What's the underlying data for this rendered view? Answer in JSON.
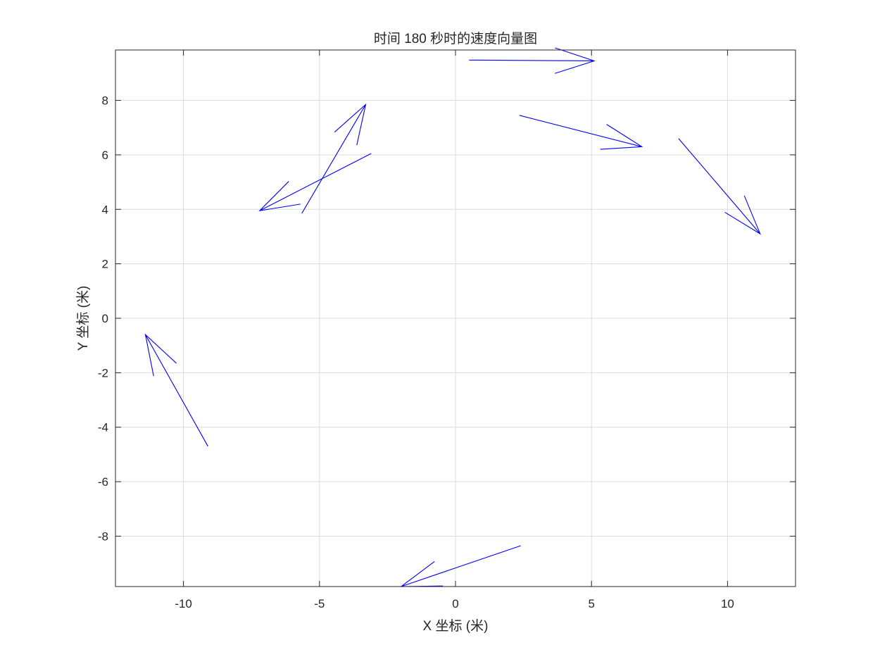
{
  "chart_data": {
    "type": "quiver",
    "title": "时间 180 秒时的速度向量图",
    "xlabel": "X 坐标 (米)",
    "ylabel": "Y 坐标 (米)",
    "xlim": [
      -12.5,
      12.5
    ],
    "ylim": [
      -9.85,
      9.85
    ],
    "x_ticks": [
      -10,
      -5,
      0,
      5,
      10
    ],
    "y_ticks": [
      -8,
      -6,
      -4,
      -2,
      0,
      2,
      4,
      6,
      8
    ],
    "x_tick_labels": [
      "-10",
      "-5",
      "0",
      "5",
      "10"
    ],
    "y_tick_labels": [
      "-8",
      "-6",
      "-4",
      "-2",
      "0",
      "2",
      "4",
      "6",
      "8"
    ],
    "grid": true,
    "color": "#0000ff",
    "vectors": [
      {
        "x": -9.1,
        "y": -4.7,
        "u": -2.3,
        "v": 4.1
      },
      {
        "x": 2.4,
        "y": -8.35,
        "u": -4.4,
        "v": -1.5
      },
      {
        "x": 0.5,
        "y": 9.48,
        "u": 4.6,
        "v": -0.03
      },
      {
        "x": 2.35,
        "y": 7.45,
        "u": 4.5,
        "v": -1.15
      },
      {
        "x": 8.2,
        "y": 6.6,
        "u": 3.0,
        "v": -3.5
      },
      {
        "x": -3.1,
        "y": 6.05,
        "u": -4.1,
        "v": -2.1
      },
      {
        "x": -5.65,
        "y": 3.85,
        "u": 2.35,
        "v": 4.0
      }
    ]
  }
}
